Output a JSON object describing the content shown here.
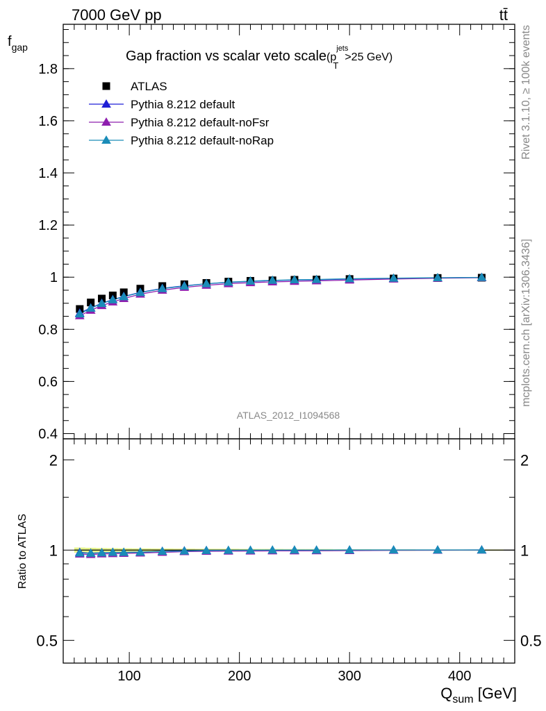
{
  "header": {
    "left": "7000 GeV pp",
    "right": "tt̄"
  },
  "side_labels": {
    "rivet": "Rivet 3.1.10, ≥ 100k events",
    "mcplots": "mcplots.cern.ch [arXiv:1306.3436]"
  },
  "chart_data": [
    {
      "type": "line",
      "panel": "main",
      "title_main": "Gap fraction vs scalar veto scale",
      "title_cut_open": "(p",
      "title_cut_sup": "jets",
      "title_cut_sub": "T",
      "title_cut_rest": ">25 GeV)",
      "ylabel_main": "f",
      "ylabel_sub": "gap",
      "watermark": "ATLAS_2012_I1094568",
      "ylim": [
        0.38,
        1.97
      ],
      "yticks": [
        0.4,
        0.6,
        0.8,
        1,
        1.2,
        1.4,
        1.6,
        1.8
      ],
      "ytick_labels": [
        "0.4",
        "0.6",
        "0.8",
        "1",
        "1.2",
        "1.4",
        "1.6",
        "1.8"
      ],
      "xlim": [
        40,
        450
      ],
      "x": [
        55,
        65,
        75,
        85,
        95,
        110,
        130,
        150,
        170,
        190,
        210,
        230,
        250,
        270,
        300,
        340,
        380,
        420
      ],
      "legend_position": "top-left",
      "series": [
        {
          "name": "ATLAS",
          "marker": "square",
          "color": "#000000",
          "values": [
            0.878,
            0.903,
            0.918,
            0.93,
            0.942,
            0.956,
            0.966,
            0.973,
            0.978,
            0.983,
            0.986,
            0.988,
            0.99,
            0.991,
            0.993,
            0.995,
            0.997,
            0.998
          ]
        },
        {
          "name": "Pythia 8.212 default",
          "marker": "triangle",
          "color": "#1f1fd6",
          "values": [
            0.862,
            0.882,
            0.9,
            0.914,
            0.926,
            0.942,
            0.957,
            0.967,
            0.975,
            0.98,
            0.984,
            0.987,
            0.989,
            0.99,
            0.993,
            0.995,
            0.997,
            0.999
          ]
        },
        {
          "name": "Pythia 8.212 default-noFsr",
          "marker": "triangle",
          "color": "#8e1fae",
          "values": [
            0.852,
            0.873,
            0.891,
            0.905,
            0.918,
            0.935,
            0.95,
            0.961,
            0.969,
            0.975,
            0.979,
            0.982,
            0.984,
            0.986,
            0.989,
            0.993,
            0.996,
            0.998
          ]
        },
        {
          "name": "Pythia 8.212 default-noRap",
          "marker": "triangle",
          "color": "#1a8cb8",
          "values": [
            0.859,
            0.881,
            0.899,
            0.913,
            0.925,
            0.941,
            0.956,
            0.966,
            0.975,
            0.981,
            0.985,
            0.988,
            0.99,
            0.991,
            0.994,
            0.996,
            0.998,
            0.999
          ]
        }
      ]
    },
    {
      "type": "line",
      "panel": "ratio",
      "ylabel": "Ratio to ATLAS",
      "xlabel_main": "Q",
      "xlabel_sub": "sum",
      "xlabel_unit": " [GeV]",
      "xticks": [
        100,
        200,
        300,
        400
      ],
      "xtick_labels": [
        "100",
        "200",
        "300",
        "400"
      ],
      "yticks": [
        0.5,
        1,
        2
      ],
      "ytick_labels": [
        "0.5",
        "1",
        "2"
      ],
      "ylim": [
        0.42,
        2.35
      ],
      "yscale": "log",
      "band_color": "#e5f58a",
      "band_values": [
        0.02,
        0.018,
        0.016,
        0.015,
        0.014,
        0.013,
        0.012,
        0.011,
        0.01,
        0.01,
        0.009,
        0.009,
        0.008,
        0.008,
        0.007,
        0.006,
        0.005,
        0.005
      ],
      "series": [
        {
          "name": "Pythia 8.212 default",
          "color": "#1f1fd6",
          "values": [
            0.982,
            0.977,
            0.98,
            0.983,
            0.983,
            0.985,
            0.991,
            0.994,
            0.997,
            0.997,
            0.998,
            0.999,
            0.999,
            0.999,
            1.0,
            1.0,
            1.0,
            1.001
          ]
        },
        {
          "name": "Pythia 8.212 default-noFsr",
          "color": "#8e1fae",
          "values": [
            0.97,
            0.967,
            0.971,
            0.973,
            0.975,
            0.978,
            0.983,
            0.988,
            0.991,
            0.992,
            0.993,
            0.994,
            0.994,
            0.995,
            0.996,
            0.998,
            0.999,
            1.0
          ]
        },
        {
          "name": "Pythia 8.212 default-noRap",
          "color": "#1a8cb8",
          "values": [
            0.978,
            0.976,
            0.979,
            0.982,
            0.982,
            0.984,
            0.99,
            0.993,
            0.997,
            0.998,
            0.999,
            1.0,
            1.0,
            1.0,
            1.001,
            1.001,
            1.001,
            1.001
          ]
        }
      ]
    }
  ]
}
